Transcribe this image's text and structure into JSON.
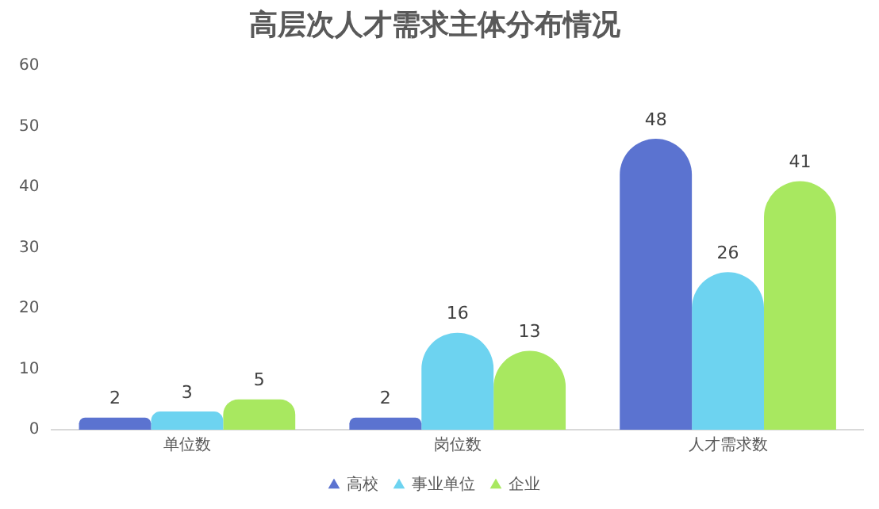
{
  "chart_data": {
    "type": "bar",
    "title": "高层次人才需求主体分布情况",
    "categories": [
      "单位数",
      "岗位数",
      "人才需求数"
    ],
    "series": [
      {
        "name": "高校",
        "color": "#5b73d0",
        "values": [
          2,
          2,
          48
        ]
      },
      {
        "name": "事业单位",
        "color": "#6dd3f0",
        "values": [
          3,
          16,
          26
        ]
      },
      {
        "name": "企业",
        "color": "#a8e860",
        "values": [
          5,
          13,
          41
        ]
      }
    ],
    "ylim": [
      0,
      60
    ],
    "yticks": [
      0,
      10,
      20,
      30,
      40,
      50,
      60
    ],
    "grid": false,
    "legend": "bottom",
    "data_labels": true
  }
}
